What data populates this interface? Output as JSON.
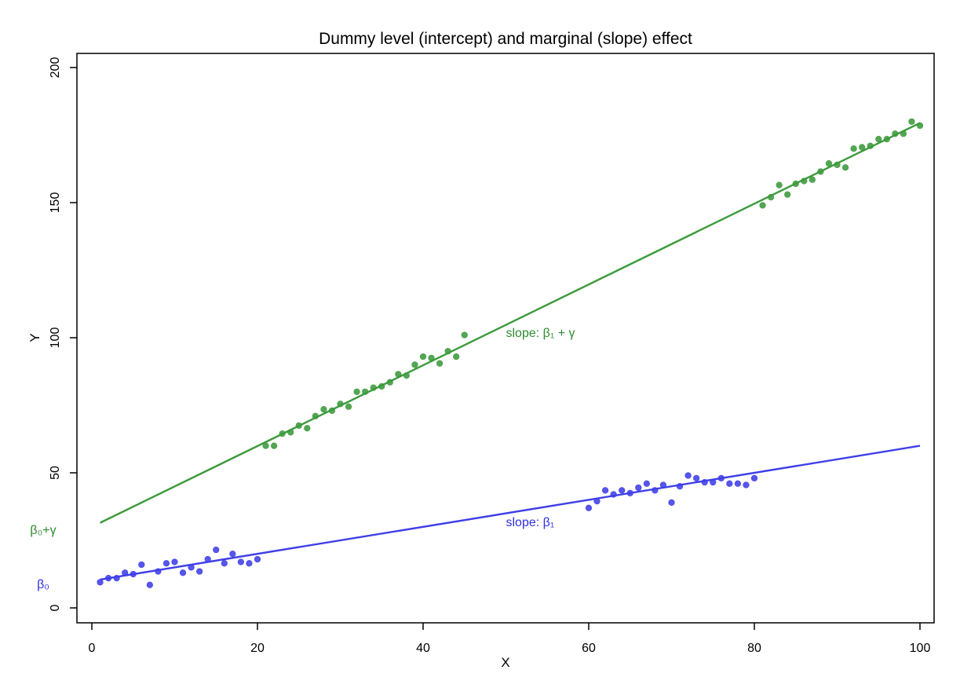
{
  "chart_data": {
    "type": "scatter",
    "title": "Dummy level (intercept) and marginal (slope) effect",
    "xlabel": "X",
    "ylabel": "Y",
    "xlim": [
      0,
      100
    ],
    "ylim": [
      0,
      200
    ],
    "xticks": [
      0,
      20,
      40,
      60,
      80,
      100
    ],
    "yticks": [
      0,
      50,
      100,
      150,
      200
    ],
    "grid": false,
    "legend": "none",
    "series": [
      {
        "color": "#3f3fe8",
        "points": [
          [
            1,
            9.5
          ],
          [
            2,
            11
          ],
          [
            3,
            11
          ],
          [
            4,
            13
          ],
          [
            5,
            12.5
          ],
          [
            6,
            16
          ],
          [
            7,
            8.5
          ],
          [
            8,
            13.5
          ],
          [
            9,
            16.5
          ],
          [
            10,
            17
          ],
          [
            11,
            13
          ],
          [
            12,
            15
          ],
          [
            13,
            13.5
          ],
          [
            14,
            18
          ],
          [
            15,
            21.5
          ],
          [
            16,
            16.5
          ],
          [
            17,
            20
          ],
          [
            18,
            17
          ],
          [
            19,
            16.5
          ],
          [
            20,
            18
          ],
          [
            60,
            37
          ],
          [
            61,
            39.5
          ],
          [
            62,
            43.5
          ],
          [
            63,
            42
          ],
          [
            64,
            43.5
          ],
          [
            65,
            42.5
          ],
          [
            66,
            44.5
          ],
          [
            67,
            46
          ],
          [
            68,
            43.5
          ],
          [
            69,
            45.5
          ],
          [
            70,
            39
          ],
          [
            71,
            45
          ],
          [
            72,
            49
          ],
          [
            73,
            48
          ],
          [
            74,
            46.5
          ],
          [
            75,
            46.5
          ],
          [
            76,
            48
          ],
          [
            77,
            46
          ],
          [
            78,
            46
          ],
          [
            79,
            45.5
          ],
          [
            80,
            48
          ]
        ],
        "fit_line": [
          [
            1,
            10.5
          ],
          [
            100,
            60
          ]
        ]
      },
      {
        "color": "#3c9a3c",
        "points": [
          [
            21,
            60
          ],
          [
            22,
            60
          ],
          [
            23,
            64.5
          ],
          [
            24,
            65
          ],
          [
            25,
            67.5
          ],
          [
            26,
            66.5
          ],
          [
            27,
            71
          ],
          [
            28,
            73.5
          ],
          [
            29,
            73
          ],
          [
            30,
            75.5
          ],
          [
            31,
            74.5
          ],
          [
            32,
            80
          ],
          [
            33,
            80
          ],
          [
            34,
            81.5
          ],
          [
            35,
            82
          ],
          [
            36,
            83.5
          ],
          [
            37,
            86.5
          ],
          [
            38,
            86
          ],
          [
            39,
            90
          ],
          [
            40,
            93
          ],
          [
            41,
            92.5
          ],
          [
            42,
            90.5
          ],
          [
            43,
            95
          ],
          [
            44,
            93
          ],
          [
            45,
            101
          ],
          [
            81,
            149
          ],
          [
            82,
            152
          ],
          [
            83,
            156.5
          ],
          [
            84,
            153
          ],
          [
            85,
            157
          ],
          [
            86,
            158
          ],
          [
            87,
            158.5
          ],
          [
            88,
            161.5
          ],
          [
            89,
            164.5
          ],
          [
            90,
            164
          ],
          [
            91,
            163
          ],
          [
            92,
            170
          ],
          [
            93,
            170.5
          ],
          [
            94,
            171
          ],
          [
            95,
            173.5
          ],
          [
            96,
            173.5
          ],
          [
            97,
            175.5
          ],
          [
            98,
            175.5
          ],
          [
            99,
            180
          ],
          [
            100,
            178.5
          ]
        ],
        "fit_line": [
          [
            1,
            31.5
          ],
          [
            100,
            179.5
          ]
        ]
      }
    ],
    "annotations": [
      {
        "text": "slope: β₁ + γ",
        "x": 50,
        "y": 102,
        "color": "#2e8b2e"
      },
      {
        "text": "slope: β₁",
        "x": 50,
        "y": 32,
        "color": "#2f2fe0"
      }
    ],
    "yaxis_annotations": [
      {
        "text": "β₀+γ",
        "y": 29,
        "color": "#2e8b2e"
      },
      {
        "text": "β₀",
        "y": 9,
        "color": "#2f2fe0"
      }
    ]
  }
}
